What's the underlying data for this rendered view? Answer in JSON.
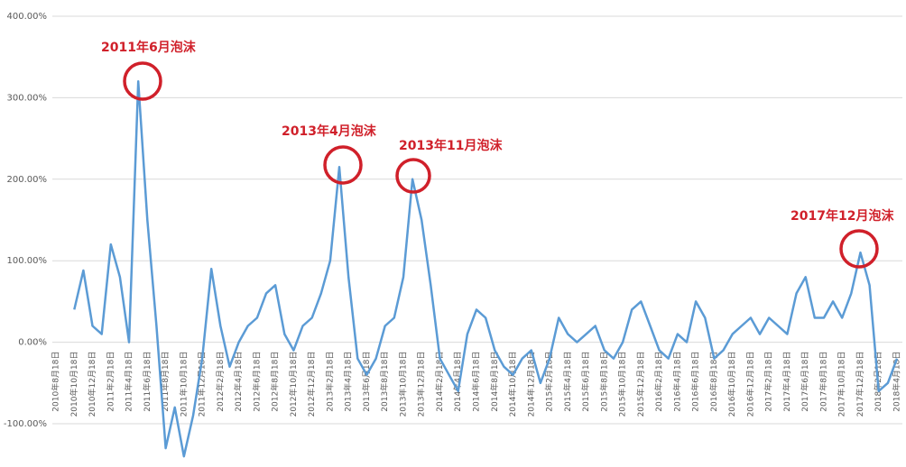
{
  "chart_data": {
    "type": "line",
    "annotations": [
      "2011年6月泡沫",
      "2013年4月泡沫",
      "2013年11月泡沫",
      "2017年12月泡沫"
    ],
    "categories": [
      "2010年8月18日",
      null,
      "2010年10月18日",
      null,
      "2010年12月18日",
      null,
      "2011年2月18日",
      null,
      "2011年4月18日",
      null,
      "2011年6月18日",
      null,
      "2011年8月18日",
      null,
      "2011年10月18日",
      null,
      "2011年12月18日",
      null,
      "2012年2月18日",
      null,
      "2012年4月18日",
      null,
      "2012年6月18日",
      null,
      "2012年8月18日",
      null,
      "2012年10月18日",
      null,
      "2012年12月18日",
      null,
      "2013年2月18日",
      null,
      "2013年4月18日",
      null,
      "2013年6月18日",
      null,
      "2013年8月18日",
      null,
      "2013年10月18日",
      null,
      "2013年12月18日",
      null,
      "2014年2月18日",
      null,
      "2014年4月18日",
      null,
      "2014年6月18日",
      null,
      "2014年8月18日",
      null,
      "2014年10月18日",
      null,
      "2014年12月18日",
      null,
      "2015年2月18日",
      null,
      "2015年4月18日",
      null,
      "2015年6月18日",
      null,
      "2015年8月18日",
      null,
      "2015年10月18日",
      null,
      "2015年12月18日",
      null,
      "2016年2月18日",
      null,
      "2016年4月18日",
      null,
      "2016年6月18日",
      null,
      "2016年8月18日",
      null,
      "2016年10月18日",
      null,
      "2016年12月18日",
      null,
      "2017年2月18日",
      null,
      "2017年4月18日",
      null,
      "2017年6月18日",
      null,
      "2017年8月18日",
      null,
      "2017年10月18日",
      null,
      "2017年12月18日",
      null,
      "2018年2月18日",
      null,
      "2018年4月18日"
    ],
    "series": [
      {
        "color": "#5b9bd5",
        "values": [
          null,
          null,
          40,
          88,
          20,
          10,
          120,
          80,
          0,
          320,
          150,
          20,
          -130,
          -80,
          -140,
          -90,
          -20,
          90,
          20,
          -30,
          0,
          20,
          30,
          60,
          70,
          10,
          -10,
          20,
          30,
          60,
          100,
          215,
          80,
          -20,
          -40,
          -20,
          20,
          30,
          80,
          200,
          150,
          70,
          -20,
          -40,
          -60,
          10,
          40,
          30,
          -10,
          -30,
          -40,
          -20,
          -10,
          -50,
          -20,
          30,
          10,
          0,
          10,
          20,
          -10,
          -20,
          0,
          40,
          50,
          20,
          -10,
          -20,
          10,
          0,
          50,
          30,
          -20,
          -10,
          10,
          20,
          30,
          10,
          30,
          20,
          10,
          60,
          80,
          30,
          30,
          50,
          30,
          60,
          110,
          70,
          -60,
          -50,
          -20
        ]
      }
    ],
    "ylim": [
      -100,
      400
    ],
    "yticks": [
      {
        "value": -100,
        "label": "-100.00%"
      },
      {
        "value": 0,
        "label": "0.00%"
      },
      {
        "value": 100,
        "label": "100.00%"
      },
      {
        "value": 200,
        "label": "200.00%"
      },
      {
        "value": 300,
        "label": "300.00%"
      },
      {
        "value": 400,
        "label": "400.00%"
      }
    ],
    "grid": true
  }
}
